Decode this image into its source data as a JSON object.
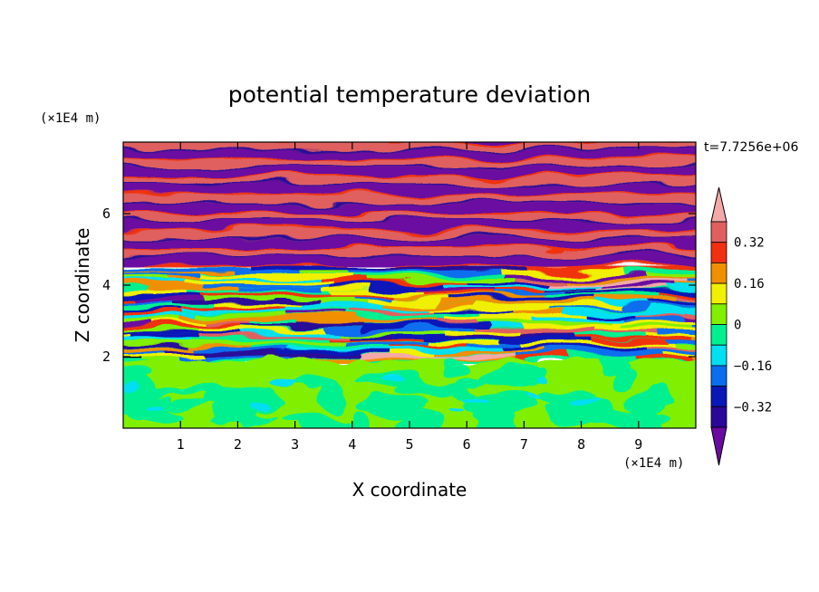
{
  "chart_data": {
    "type": "heatmap",
    "title": "potential temperature deviation",
    "xlabel": "X coordinate",
    "ylabel": "Z coordinate",
    "x_unit": "(×1E4 m)",
    "y_unit": "(×1E4 m)",
    "time_label": "t=7.7256e+06",
    "xlim": [
      0,
      10
    ],
    "ylim": [
      0,
      8
    ],
    "x_ticks": [
      "1",
      "2",
      "3",
      "4",
      "5",
      "6",
      "7",
      "8",
      "9"
    ],
    "y_ticks": [
      "2",
      "4",
      "6"
    ],
    "colorbar": {
      "labels": [
        "0.32",
        "0.16",
        "0",
        "−0.16",
        "−0.32"
      ],
      "levels": [
        -0.4,
        -0.32,
        -0.24,
        -0.16,
        -0.08,
        0,
        0.08,
        0.16,
        0.24,
        0.32,
        0.4
      ],
      "colors": [
        "#6a0aa0",
        "#2a0898",
        "#0a18b8",
        "#0a6eee",
        "#00e0f0",
        "#00f090",
        "#80f000",
        "#f0f000",
        "#f09000",
        "#f03010",
        "#e06060",
        "#f4a8a8"
      ]
    },
    "layers": [
      {
        "z": [
          0,
          1.9
        ],
        "description": "lower layer dominated by values near 0 to 0.08"
      },
      {
        "z": [
          1.9,
          4.5
        ],
        "description": "mixed turbulent layer spanning full range"
      },
      {
        "z": [
          4.5,
          8
        ],
        "description": "alternating bands of +0.4 and -0.4"
      }
    ]
  }
}
